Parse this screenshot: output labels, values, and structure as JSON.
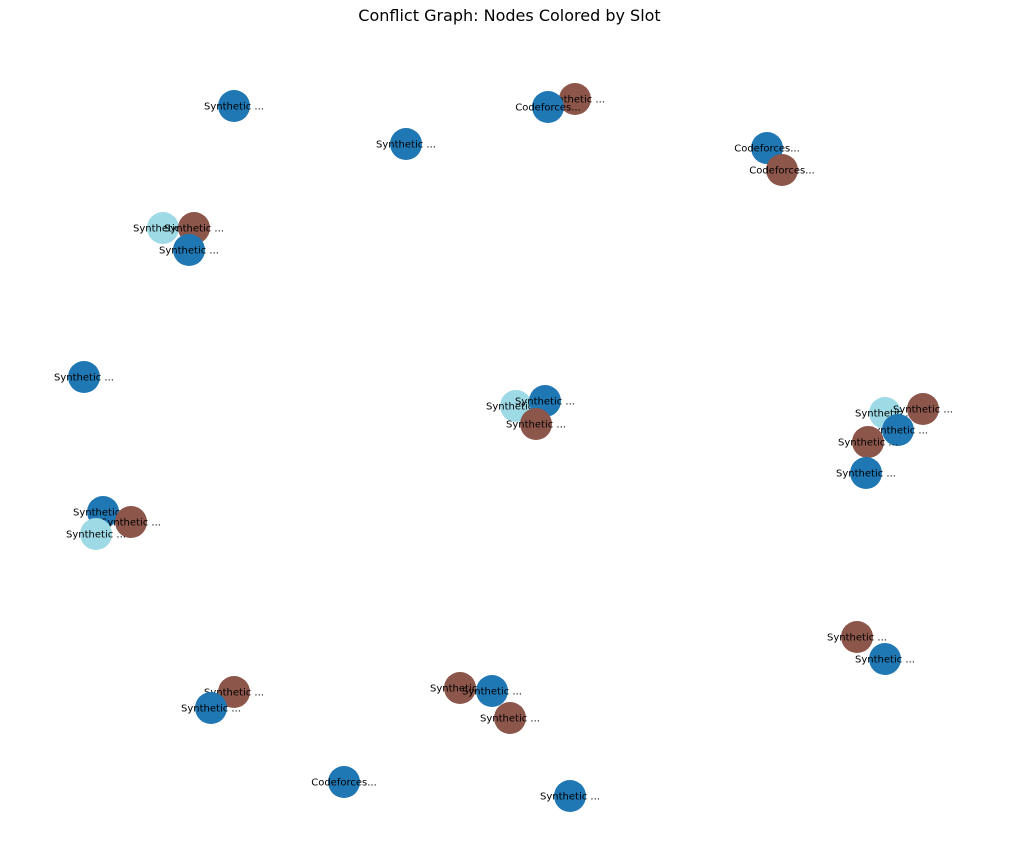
{
  "title": "Conflict Graph: Nodes Colored by Slot",
  "colors": {
    "slot_blue": "#1f77b4",
    "slot_brown": "#8c564b",
    "slot_light_blue": "#9edae5"
  },
  "nodes": [
    {
      "label": "Synthetic ...",
      "slot": "slot_blue"
    },
    {
      "label": "Synthetic ...",
      "slot": "slot_blue"
    },
    {
      "label": "Synthetic ...",
      "slot": "slot_brown"
    },
    {
      "label": "Codeforces...",
      "slot": "slot_blue"
    },
    {
      "label": "Codeforces...",
      "slot": "slot_blue"
    },
    {
      "label": "Codeforces...",
      "slot": "slot_brown"
    },
    {
      "label": "Synthetic ...",
      "slot": "slot_light_blue"
    },
    {
      "label": "Synthetic ...",
      "slot": "slot_brown"
    },
    {
      "label": "Synthetic ...",
      "slot": "slot_blue"
    },
    {
      "label": "Synthetic ...",
      "slot": "slot_blue"
    },
    {
      "label": "Synthetic ...",
      "slot": "slot_light_blue"
    },
    {
      "label": "Synthetic ...",
      "slot": "slot_blue"
    },
    {
      "label": "Synthetic ...",
      "slot": "slot_brown"
    },
    {
      "label": "Synthetic ...",
      "slot": "slot_light_blue"
    },
    {
      "label": "Synthetic ...",
      "slot": "slot_brown"
    },
    {
      "label": "Synthetic ...",
      "slot": "slot_blue"
    },
    {
      "label": "Synthetic ...",
      "slot": "slot_brown"
    },
    {
      "label": "Synthetic ...",
      "slot": "slot_blue"
    },
    {
      "label": "Synthetic ...",
      "slot": "slot_blue"
    },
    {
      "label": "Synthetic ...",
      "slot": "slot_brown"
    },
    {
      "label": "Synthetic ...",
      "slot": "slot_light_blue"
    },
    {
      "label": "Synthetic ...",
      "slot": "slot_brown"
    },
    {
      "label": "Synthetic ...",
      "slot": "slot_blue"
    },
    {
      "label": "Synthetic ...",
      "slot": "slot_brown"
    },
    {
      "label": "Synthetic ...",
      "slot": "slot_blue"
    },
    {
      "label": "Synthetic ...",
      "slot": "slot_brown"
    },
    {
      "label": "Synthetic ...",
      "slot": "slot_blue"
    },
    {
      "label": "Synthetic ...",
      "slot": "slot_brown"
    },
    {
      "label": "Codeforces...",
      "slot": "slot_blue"
    },
    {
      "label": "Synthetic ...",
      "slot": "slot_blue"
    }
  ]
}
